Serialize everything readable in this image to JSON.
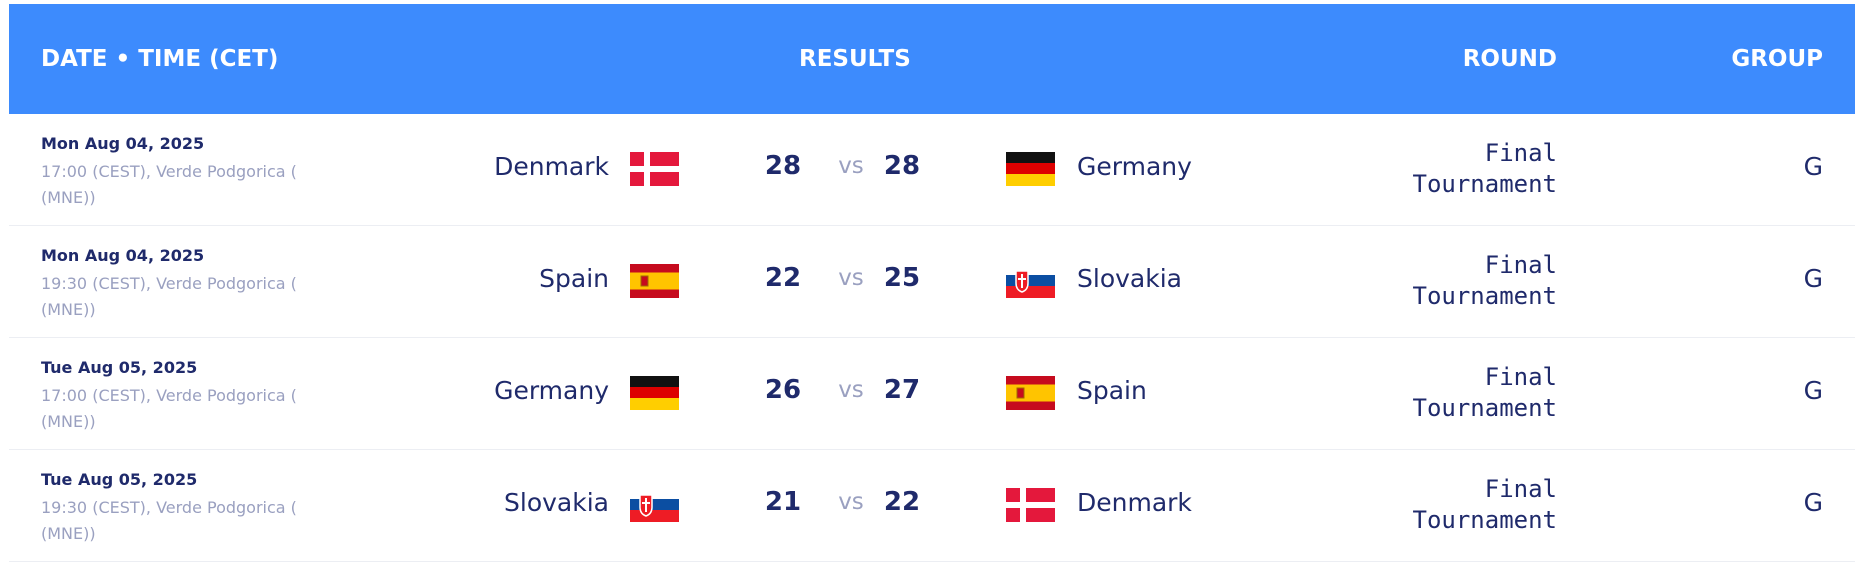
{
  "header": {
    "date_time": "DATE • TIME (CET)",
    "results": "RESULTS",
    "round": "ROUND",
    "group": "GROUP"
  },
  "rows": [
    {
      "date": "Mon Aug 04, 2025",
      "time_venue": "17:00 (CEST), Verde Podgorica ( (MNE))",
      "home": "Denmark",
      "home_score": 28,
      "vs": "vs",
      "away_score": 28,
      "away": "Germany",
      "round": "Final Tournament",
      "group": "G"
    },
    {
      "date": "Mon Aug 04, 2025",
      "time_venue": "19:30 (CEST), Verde Podgorica ( (MNE))",
      "home": "Spain",
      "home_score": 22,
      "vs": "vs",
      "away_score": 25,
      "away": "Slovakia",
      "round": "Final Tournament",
      "group": "G"
    },
    {
      "date": "Tue Aug 05, 2025",
      "time_venue": "17:00 (CEST), Verde Podgorica ( (MNE))",
      "home": "Germany",
      "home_score": 26,
      "vs": "vs",
      "away_score": 27,
      "away": "Spain",
      "round": "Final Tournament",
      "group": "G"
    },
    {
      "date": "Tue Aug 05, 2025",
      "time_venue": "19:30 (CEST), Verde Podgorica ( (MNE))",
      "home": "Slovakia",
      "home_score": 21,
      "vs": "vs",
      "away_score": 22,
      "away": "Denmark",
      "round": "Final Tournament",
      "group": "G"
    }
  ]
}
